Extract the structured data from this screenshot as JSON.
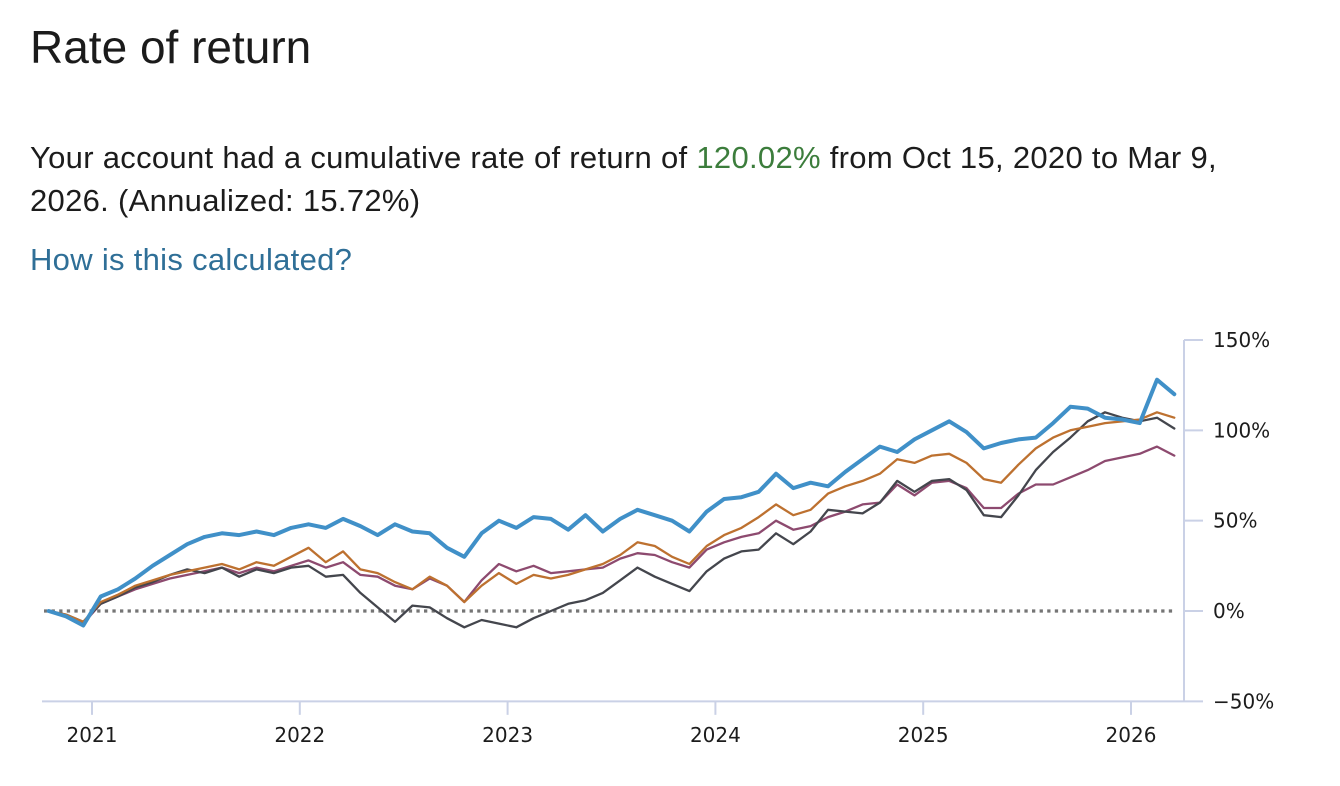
{
  "header": {
    "title": "Rate of return"
  },
  "summary": {
    "line1_prefix": "Your account had a cumulative rate of return of ",
    "highlight_value": "120.02%",
    "line1_suffix": " from Oct 15, 2020 to Mar 9,",
    "line2": "2026. (Annualized: 15.72%)",
    "highlight_color": "#3c7d3c"
  },
  "link": {
    "label": "How is this calculated?",
    "color": "#2f6f97"
  },
  "chart_data": {
    "type": "line",
    "title": "",
    "xlabel": "",
    "ylabel": "",
    "x_axis": {
      "tick_labels": [
        "2021",
        "2022",
        "2023",
        "2024",
        "2025",
        "2026"
      ],
      "range_start": "Oct 15, 2020",
      "range_end": "Mar 9, 2026"
    },
    "y_axis": {
      "side": "right",
      "unit": "%",
      "ylim": [
        -50,
        150
      ],
      "tick_values": [
        150,
        100,
        50,
        0,
        -50
      ],
      "tick_labels": [
        "150%",
        "100%",
        "50%",
        "0%",
        "−50%"
      ]
    },
    "grid": false,
    "legend": "none",
    "zero_line": {
      "value": 0,
      "style": "dotted",
      "color": "#757575"
    },
    "axis_color": "#cad1e6",
    "sampling": "monthly",
    "x_start_decimal_year": 2020.7917,
    "x_step_years": 0.083333,
    "series": [
      {
        "name": "blue (your account)",
        "color": "#4090c8",
        "width": 4,
        "values": [
          0,
          -3,
          -8,
          8,
          12,
          18,
          25,
          31,
          37,
          41,
          43,
          42,
          44,
          42,
          46,
          48,
          46,
          51,
          47,
          42,
          48,
          44,
          43,
          35,
          30,
          43,
          50,
          46,
          52,
          51,
          45,
          53,
          44,
          51,
          56,
          53,
          50,
          44,
          55,
          62,
          63,
          66,
          76,
          68,
          71,
          69,
          77,
          84,
          91,
          88,
          95,
          100,
          105,
          99,
          90,
          93,
          95,
          96,
          104,
          113,
          112,
          107,
          106,
          104,
          128,
          120
        ]
      },
      {
        "name": "orange",
        "color": "#bd7130",
        "width": 2.3,
        "values": [
          0,
          -2,
          -6,
          5,
          9,
          14,
          17,
          20,
          22,
          24,
          26,
          23,
          27,
          25,
          30,
          35,
          27,
          33,
          23,
          21,
          16,
          12,
          19,
          14,
          5,
          14,
          21,
          15,
          20,
          18,
          20,
          23,
          26,
          31,
          38,
          36,
          30,
          26,
          36,
          42,
          46,
          52,
          59,
          53,
          56,
          65,
          69,
          72,
          76,
          84,
          82,
          86,
          87,
          82,
          73,
          71,
          81,
          90,
          96,
          100,
          102,
          104,
          105,
          106,
          110,
          107
        ]
      },
      {
        "name": "dark-gray",
        "color": "#44464d",
        "width": 2.3,
        "values": [
          0,
          -2,
          -6,
          4,
          8,
          13,
          16,
          20,
          23,
          21,
          24,
          19,
          23,
          21,
          24,
          25,
          19,
          20,
          10,
          2,
          -6,
          3,
          2,
          -4,
          -9,
          -5,
          -7,
          -9,
          -4,
          0,
          4,
          6,
          10,
          17,
          24,
          19,
          15,
          11,
          22,
          29,
          33,
          34,
          43,
          37,
          44,
          56,
          55,
          54,
          60,
          72,
          66,
          72,
          73,
          67,
          53,
          52,
          64,
          78,
          88,
          96,
          105,
          110,
          107,
          105,
          107,
          101
        ]
      },
      {
        "name": "purple",
        "color": "#8d4a6f",
        "width": 2.3,
        "values": [
          0,
          -3,
          -7,
          4,
          8,
          12,
          15,
          18,
          20,
          22,
          24,
          21,
          24,
          22,
          25,
          28,
          24,
          27,
          20,
          19,
          14,
          12,
          18,
          14,
          5,
          17,
          26,
          22,
          25,
          21,
          22,
          23,
          24,
          29,
          32,
          31,
          27,
          24,
          34,
          38,
          41,
          43,
          50,
          45,
          47,
          52,
          55,
          59,
          60,
          70,
          64,
          71,
          72,
          68,
          57,
          57,
          65,
          70,
          70,
          74,
          78,
          83,
          85,
          87,
          91,
          86
        ]
      }
    ]
  }
}
